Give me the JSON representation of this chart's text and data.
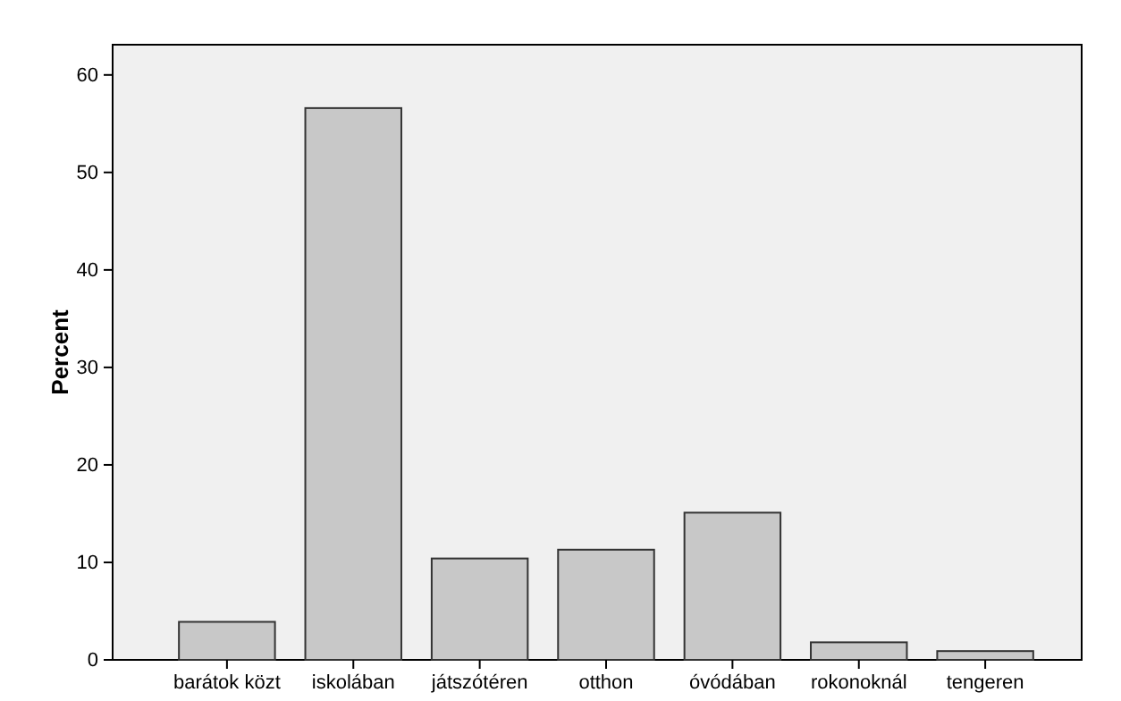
{
  "chart_data": {
    "type": "bar",
    "ylabel": "Percent",
    "categories": [
      "barátok közt",
      "iskolában",
      "játszótéren",
      "otthon",
      "óvódában",
      "rokonoknál",
      "tengeren"
    ],
    "values": [
      3.9,
      56.6,
      10.4,
      11.3,
      15.1,
      1.8,
      0.9
    ],
    "color": "#c8c8c8",
    "ylim": [
      0,
      63.1
    ],
    "yticks": [
      0,
      10,
      20,
      30,
      40,
      50,
      60
    ],
    "grid": false
  }
}
